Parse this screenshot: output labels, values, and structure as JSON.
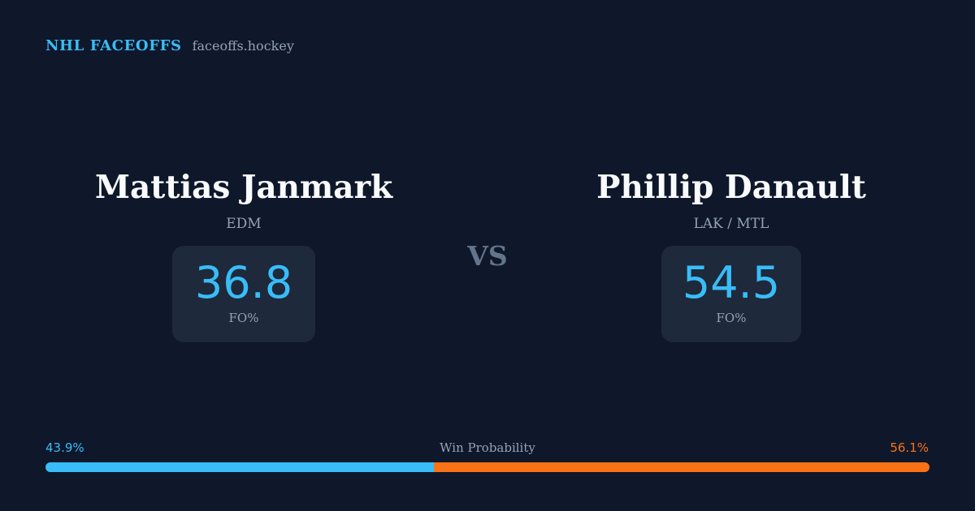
{
  "brand": {
    "name": "NHL FACEOFFS",
    "domain": "faceoffs.hockey"
  },
  "players": [
    {
      "name": "Mattias Janmark",
      "team": "EDM",
      "stat_value": "36.8",
      "stat_label": "FO%"
    },
    {
      "name": "Phillip Danault",
      "team": "LAK / MTL",
      "stat_value": "54.5",
      "stat_label": "FO%"
    }
  ],
  "versus": "VS",
  "win_probability": {
    "label": "Win Probability",
    "left_text": "43.9%",
    "right_text": "56.1%",
    "left_value": 43.9,
    "right_value": 56.1
  },
  "colors": {
    "background": "#0f172a",
    "card": "#1e293b",
    "accent_left": "#38bdf8",
    "accent_right": "#f97316",
    "muted": "#94a3b8"
  }
}
